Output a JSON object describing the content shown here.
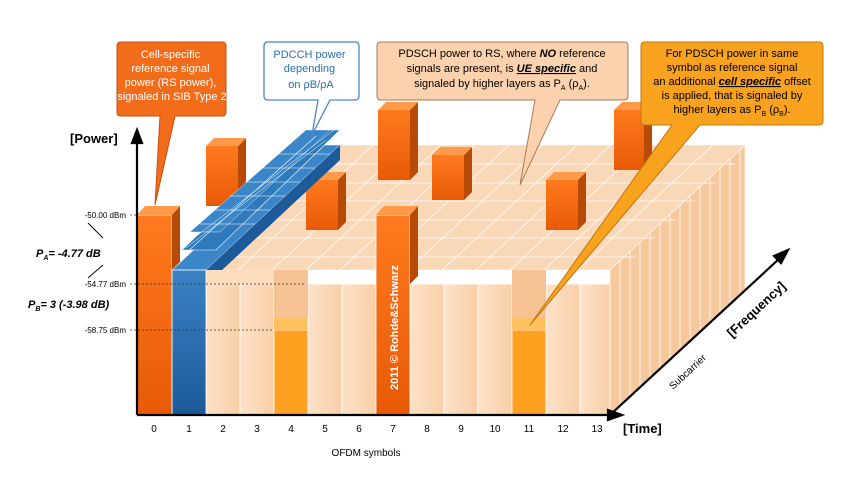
{
  "axes": {
    "power_label": "[Power]",
    "time_label": "[Time]",
    "frequency_label": "[Frequency]",
    "subcarrier_label": "Subcarrier",
    "xaxis_caption": "OFDM symbols",
    "symbols": [
      "0",
      "1",
      "2",
      "3",
      "4",
      "5",
      "6",
      "7",
      "8",
      "9",
      "10",
      "11",
      "12",
      "13"
    ]
  },
  "levels": {
    "rs": "-50.00 dBm",
    "pa": "-54.77 dBm",
    "pb": "-58.75 dBm",
    "pa_label": "= -4.77 dB",
    "pb_label": "= 3 (-3.98 dB)"
  },
  "watermark": "2011 © Rohde&Schwarz",
  "callouts": {
    "rs_power": [
      "Cell-specific",
      "reference signal",
      "power (RS power),",
      "signaled in SIB Type 2"
    ],
    "pdcch": [
      "PDCCH power",
      "depending",
      "on ρB/ρA"
    ],
    "pdsch_no_rs": {
      "line1_a": "PDSCH power to RS, where ",
      "line1_b": "NO",
      "line1_c": " reference",
      "line2": "signals are present, is ",
      "line2_b": "UE specific",
      "line2_c": " and",
      "line3": "signaled by higher layers as P",
      "line3_b": " (ρ",
      "line3_c": ")."
    },
    "pdsch_rs": {
      "line1": "For PDSCH power in same",
      "line2": "symbol as reference signal",
      "line3_a": "an additional ",
      "line3_b": "cell specific",
      "line3_c": " offset",
      "line4": "is applied, that is signaled by",
      "line5": "higher layers as P",
      "line5_b": " (ρ",
      "line5_c": ")."
    }
  },
  "colors": {
    "rs_orange": "#f26a10",
    "pdcch_blue": "#2a6fb3",
    "pdsch_peach": "#fcd4ae",
    "pb_orange": "#ffa020",
    "callout_orange": "#f36c1a",
    "callout_peach": "#fbd2ad",
    "callout_amber": "#f8a21e"
  }
}
